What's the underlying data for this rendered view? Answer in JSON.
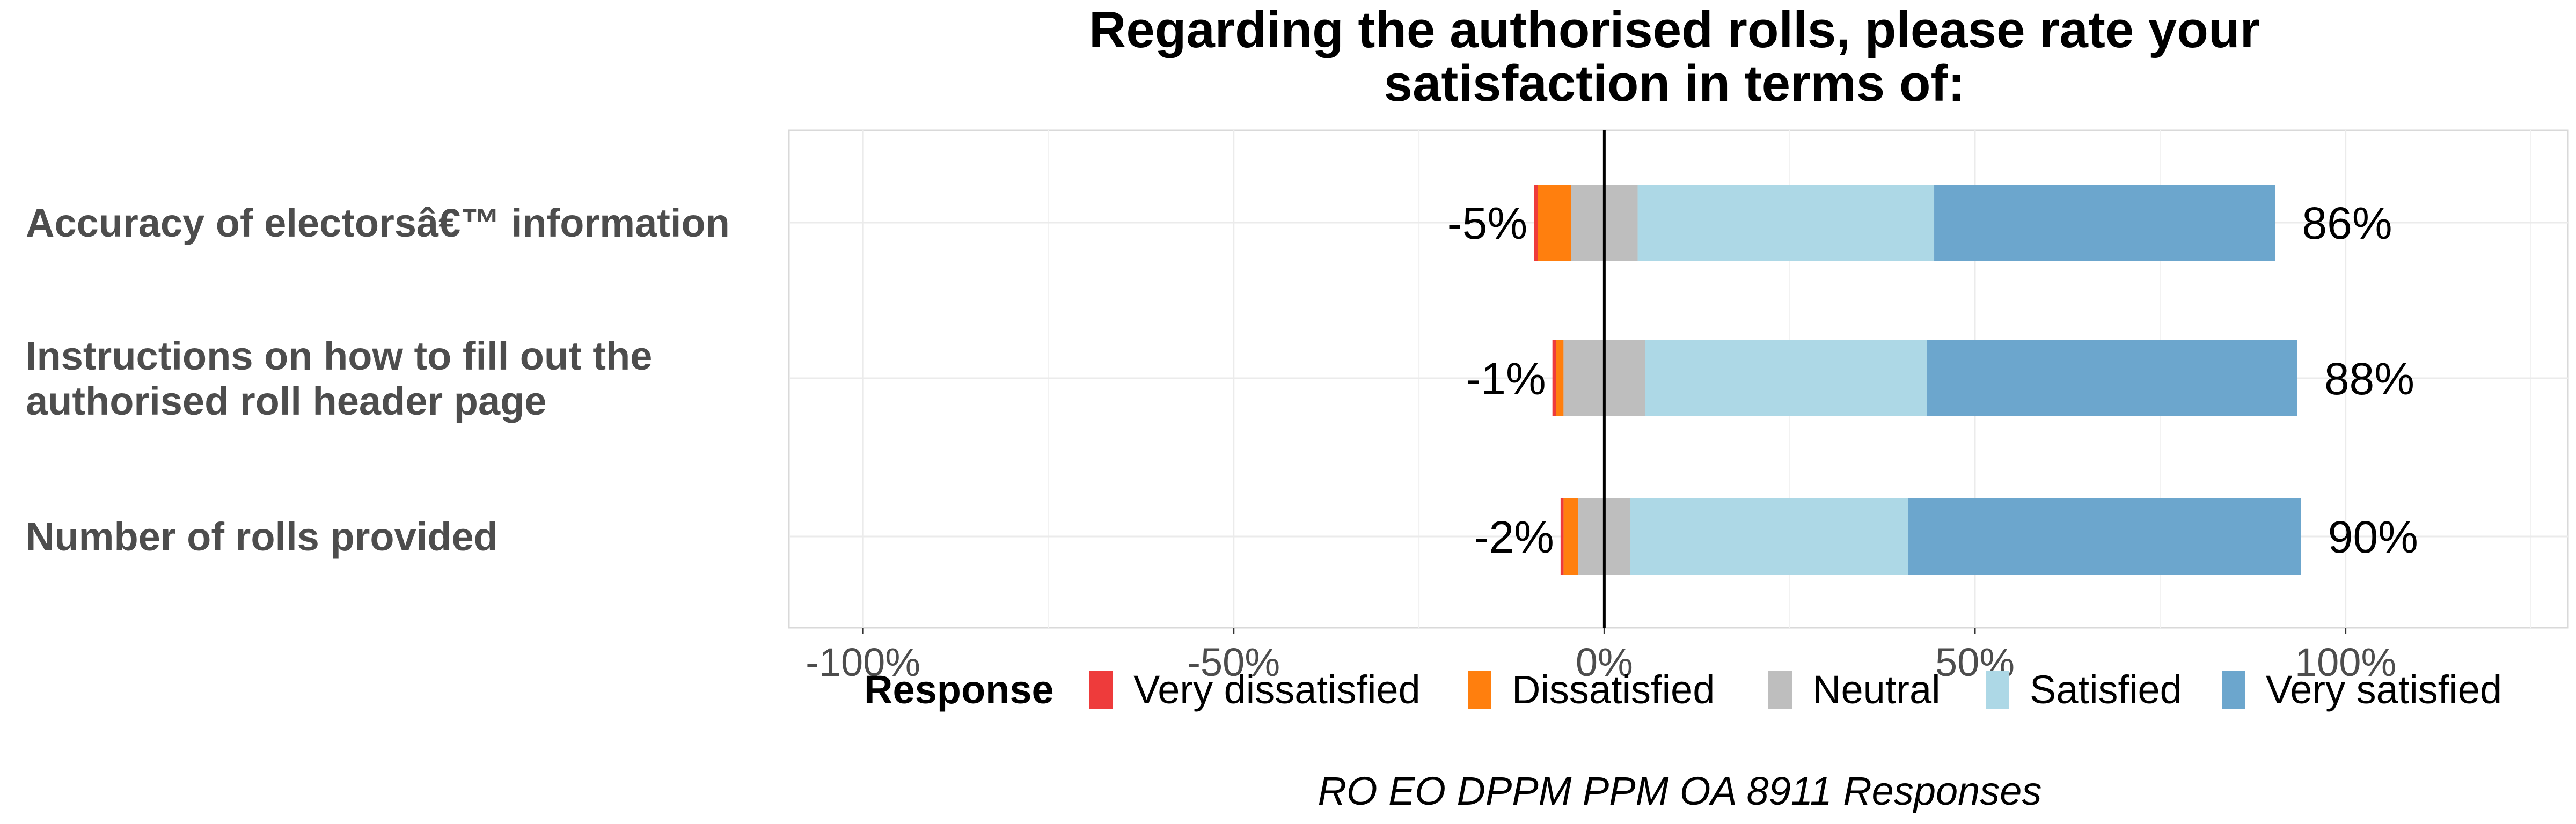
{
  "chart_data": {
    "type": "bar",
    "orientation": "horizontal",
    "stacked": "diverging",
    "title_lines": [
      "Regarding the authorised rolls, please rate your",
      "satisfaction in terms of:"
    ],
    "categories": [
      [
        "Accuracy of electorsâ€™ information"
      ],
      [
        "Instructions on how to fill out the",
        "authorised roll header page"
      ],
      [
        "Number of rolls provided"
      ]
    ],
    "series": [
      {
        "name": "Very dissatisfied",
        "color": "#ee3b3b",
        "values": [
          -0.5,
          -0.5,
          -0.4
        ]
      },
      {
        "name": "Dissatisfied",
        "color": "#ff7f0e",
        "values": [
          -4.5,
          -1.0,
          -2.0
        ]
      },
      {
        "name": "Neutral",
        "color": "#bebebe",
        "values": [
          9.0,
          11.0,
          7.0
        ]
      },
      {
        "name": "Satisfied",
        "color": "#add8e6",
        "values": [
          40.0,
          38.0,
          37.5
        ]
      },
      {
        "name": "Very satisfied",
        "color": "#6ca6cd",
        "values": [
          46.0,
          50.0,
          53.0
        ]
      }
    ],
    "negative_labels": [
      "-5%",
      "-1%",
      "-2%"
    ],
    "positive_labels": [
      "86%",
      "88%",
      "90%"
    ],
    "xlim": [
      -110,
      130
    ],
    "x_ticks": [
      -100,
      -50,
      0,
      50,
      100
    ],
    "x_tick_labels": [
      "-100%",
      "-50%",
      "0%",
      "50%",
      "100%"
    ],
    "legend_title": "Response",
    "legend_position": "bottom",
    "caption": "RO EO DPPM PPM OA 8911 Responses",
    "grid": true
  }
}
